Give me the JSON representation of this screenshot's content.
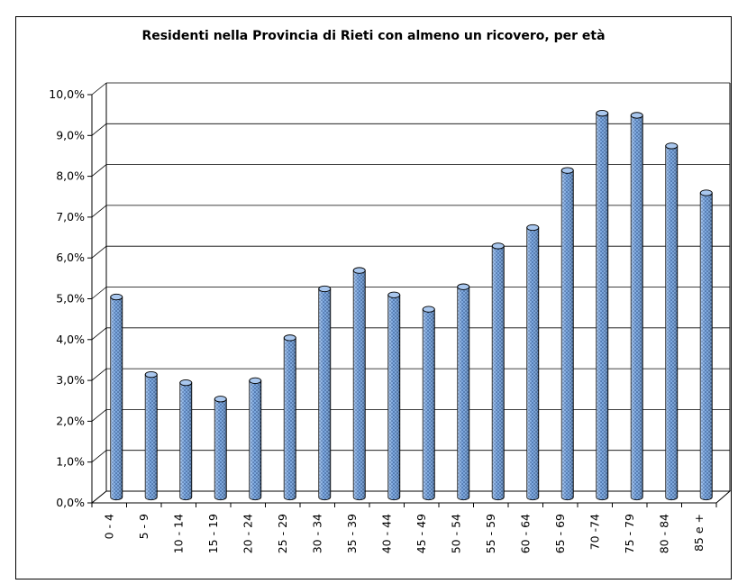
{
  "chart_data": {
    "type": "bar",
    "title": "Residenti nella Provincia di Rieti con almeno un ricovero, per età",
    "xlabel": "",
    "ylabel": "",
    "categories": [
      "0 - 4",
      "5 - 9",
      "10 - 14",
      "15 - 19",
      "20 - 24",
      "25 - 29",
      "30 - 34",
      "35 - 39",
      "40 - 44",
      "45 - 49",
      "50 - 54",
      "55 - 59",
      "60 - 64",
      "65 - 69",
      "70 -74",
      "75 - 79",
      "80 - 84",
      "85 e +"
    ],
    "values": [
      4.9,
      3.0,
      2.8,
      2.4,
      2.85,
      3.9,
      5.1,
      5.55,
      4.95,
      4.6,
      5.15,
      6.15,
      6.6,
      8.0,
      9.4,
      9.35,
      8.6,
      7.45
    ],
    "ylim": [
      0,
      10
    ],
    "ytick_labels": [
      "0,0%",
      "1,0%",
      "2,0%",
      "3,0%",
      "4,0%",
      "5,0%",
      "6,0%",
      "7,0%",
      "8,0%",
      "9,0%",
      "10,0%"
    ],
    "grid": true,
    "bar_color": "#6f9fd8",
    "style": "3d-cylinder"
  }
}
